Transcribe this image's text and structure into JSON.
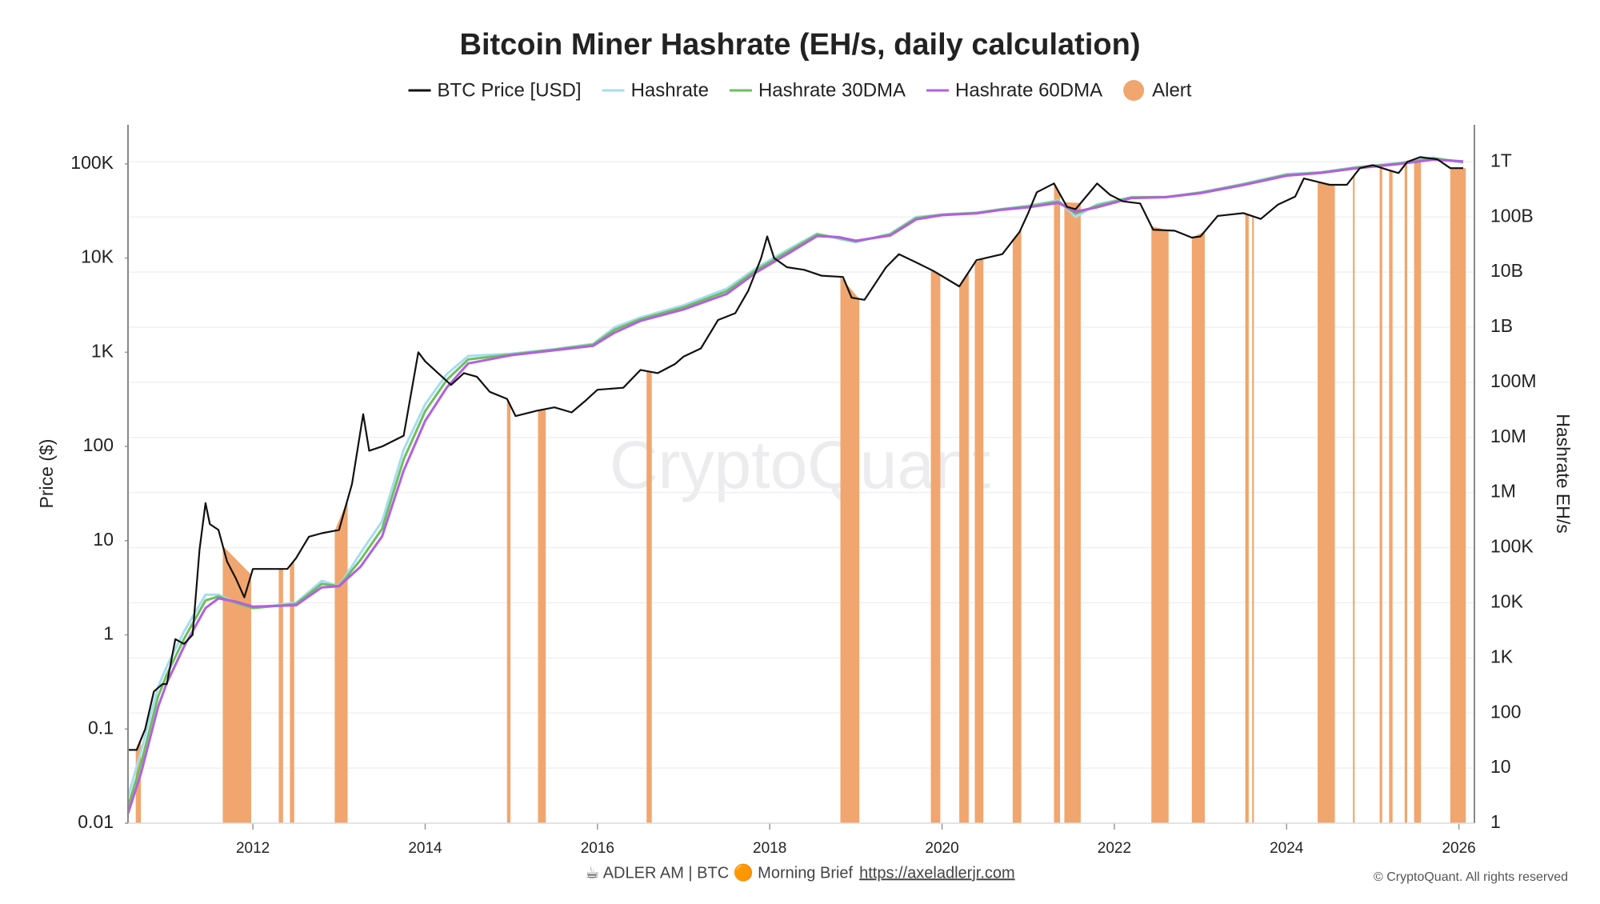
{
  "chart_data": {
    "type": "line",
    "title": "Bitcoin Miner Hashrate (EH/s, daily calculation)",
    "ylabel": "Price ($)",
    "y2label": "Hashrate EH/s",
    "watermark": "CryptoQuant",
    "footer": {
      "text": "☕ ADLER AM | BTC 🟠 Morning Brief",
      "link": "https://axeladlerjr.com"
    },
    "copyright": "© CryptoQuant. All rights reserved",
    "log_scale": true,
    "grid": true,
    "xlim": [
      2010.55,
      2026.18
    ],
    "xticks": [
      2012,
      2014,
      2016,
      2018,
      2020,
      2022,
      2024,
      2026
    ],
    "ylim": [
      0.01,
      260000
    ],
    "yticks": [
      0.01,
      0.1,
      1,
      10,
      100,
      {
        "value": 1000,
        "label": "1K"
      },
      {
        "value": 10000,
        "label": "10K"
      },
      {
        "value": 100000,
        "label": "100K"
      }
    ],
    "y2lim": [
      1,
      4700000000000
    ],
    "y2ticks": [
      1,
      10,
      100,
      {
        "value": 1000,
        "label": "1K"
      },
      {
        "value": 10000,
        "label": "10K"
      },
      {
        "value": 100000,
        "label": "100K"
      },
      {
        "value": 1000000,
        "label": "1M"
      },
      {
        "value": 10000000,
        "label": "10M"
      },
      {
        "value": 100000000,
        "label": "100M"
      },
      {
        "value": 1000000000,
        "label": "1B"
      },
      {
        "value": 10000000000,
        "label": "10B"
      },
      {
        "value": 100000000000,
        "label": "100B"
      },
      {
        "value": 1000000000000,
        "label": "1T"
      }
    ],
    "series": [
      {
        "name": "BTC Price [USD]",
        "color": "#111111",
        "axis": "y",
        "x": [
          2010.55,
          2010.65,
          2010.75,
          2010.85,
          2010.95,
          2011.0,
          2011.1,
          2011.2,
          2011.3,
          2011.38,
          2011.45,
          2011.5,
          2011.6,
          2011.7,
          2011.8,
          2011.9,
          2012.0,
          2012.2,
          2012.4,
          2012.5,
          2012.65,
          2012.8,
          2013.0,
          2013.15,
          2013.28,
          2013.35,
          2013.5,
          2013.75,
          2013.92,
          2014.0,
          2014.15,
          2014.3,
          2014.45,
          2014.6,
          2014.75,
          2014.95,
          2015.05,
          2015.3,
          2015.5,
          2015.7,
          2015.85,
          2016.0,
          2016.3,
          2016.5,
          2016.7,
          2016.9,
          2017.0,
          2017.2,
          2017.4,
          2017.6,
          2017.75,
          2017.9,
          2017.97,
          2018.05,
          2018.2,
          2018.4,
          2018.6,
          2018.85,
          2018.95,
          2019.1,
          2019.35,
          2019.5,
          2019.7,
          2019.9,
          2020.2,
          2020.4,
          2020.7,
          2020.9,
          2021.0,
          2021.1,
          2021.3,
          2021.45,
          2021.55,
          2021.8,
          2021.95,
          2022.1,
          2022.3,
          2022.45,
          2022.7,
          2022.9,
          2023.0,
          2023.2,
          2023.5,
          2023.7,
          2023.9,
          2024.1,
          2024.2,
          2024.5,
          2024.7,
          2024.85,
          2025.0,
          2025.2,
          2025.3,
          2025.4,
          2025.55,
          2025.75,
          2025.9,
          2026.05
        ],
        "values": [
          0.06,
          0.06,
          0.1,
          0.25,
          0.3,
          0.3,
          0.9,
          0.8,
          1,
          8,
          25,
          15,
          13,
          6,
          4,
          2.5,
          5,
          5,
          5,
          6.5,
          11,
          12,
          13,
          40,
          220,
          90,
          100,
          130,
          1000,
          800,
          600,
          450,
          600,
          550,
          380,
          320,
          210,
          240,
          260,
          230,
          300,
          400,
          420,
          650,
          600,
          750,
          900,
          1100,
          2200,
          2600,
          4500,
          10000,
          17000,
          10000,
          8000,
          7500,
          6500,
          6300,
          3800,
          3600,
          8000,
          11000,
          9000,
          7300,
          5000,
          9500,
          11000,
          19000,
          30000,
          50000,
          62000,
          35000,
          33000,
          62000,
          47000,
          40000,
          38000,
          20000,
          19500,
          16500,
          17000,
          28000,
          30000,
          26000,
          37000,
          45000,
          70000,
          60000,
          60000,
          90000,
          97000,
          85000,
          80000,
          105000,
          118000,
          112000,
          90000,
          90000
        ]
      },
      {
        "name": "Hashrate",
        "color": "#a6dcef",
        "axis": "y2",
        "x": [
          2010.55,
          2010.7,
          2010.9,
          2011.0,
          2011.2,
          2011.45,
          2011.6,
          2011.8,
          2012.0,
          2012.5,
          2012.8,
          2013.0,
          2013.25,
          2013.5,
          2013.75,
          2014.0,
          2014.25,
          2014.5,
          2015.0,
          2015.5,
          2015.95,
          2016.2,
          2016.5,
          2017.0,
          2017.5,
          2017.85,
          2018.2,
          2018.55,
          2018.8,
          2019.0,
          2019.4,
          2019.7,
          2020.0,
          2020.4,
          2020.7,
          2021.0,
          2021.35,
          2021.55,
          2021.8,
          2022.2,
          2022.6,
          2023.0,
          2023.5,
          2024.0,
          2024.4,
          2024.8,
          2025.3,
          2025.7,
          2026.05
        ],
        "values": [
          3,
          20,
          300,
          700,
          3000,
          14000,
          14000,
          10000,
          8000,
          10000,
          25000,
          20000,
          80000,
          300000,
          6000000,
          40000000,
          140000000,
          300000000,
          330000000,
          400000000,
          500000000,
          1000000000,
          1500000000,
          2500000000,
          5000000000,
          12000000000,
          25000000000,
          50000000000,
          40000000000,
          35000000000,
          50000000000,
          100000000000,
          110000000000,
          120000000000,
          140000000000,
          160000000000,
          200000000000,
          100000000000,
          170000000000,
          230000000000,
          230000000000,
          280000000000,
          400000000000,
          600000000000,
          650000000000,
          800000000000,
          950000000000,
          1200000000000,
          950000000000
        ]
      },
      {
        "name": "Hashrate 30DMA",
        "color": "#6cbf5a",
        "axis": "y2",
        "x": [
          2010.55,
          2010.7,
          2010.9,
          2011.0,
          2011.2,
          2011.45,
          2011.6,
          2011.8,
          2012.0,
          2012.5,
          2012.8,
          2013.0,
          2013.25,
          2013.5,
          2013.75,
          2014.0,
          2014.25,
          2014.5,
          2015.0,
          2015.5,
          2015.95,
          2016.2,
          2016.5,
          2017.0,
          2017.5,
          2017.85,
          2018.2,
          2018.55,
          2018.8,
          2019.0,
          2019.4,
          2019.7,
          2020.0,
          2020.4,
          2020.7,
          2021.0,
          2021.35,
          2021.55,
          2021.8,
          2022.2,
          2022.6,
          2023.0,
          2023.5,
          2024.0,
          2024.4,
          2024.8,
          2025.3,
          2025.7,
          2026.05
        ],
        "values": [
          2,
          12,
          200,
          500,
          2200,
          11000,
          13000,
          10000,
          8000,
          9500,
          22000,
          20000,
          60000,
          220000,
          4000000,
          30000000,
          110000000,
          260000000,
          320000000,
          390000000,
          480000000,
          900000000,
          1400000000,
          2300000000,
          4500000000,
          11000000000,
          23000000000,
          48000000000,
          42000000000,
          36000000000,
          48000000000,
          95000000000,
          110000000000,
          118000000000,
          138000000000,
          155000000000,
          190000000000,
          115000000000,
          160000000000,
          225000000000,
          230000000000,
          275000000000,
          390000000000,
          580000000000,
          640000000000,
          780000000000,
          930000000000,
          1150000000000,
          1000000000000
        ]
      },
      {
        "name": "Hashrate 60DMA",
        "color": "#b35fe0",
        "axis": "y2",
        "x": [
          2010.55,
          2010.7,
          2010.9,
          2011.0,
          2011.2,
          2011.45,
          2011.6,
          2011.8,
          2012.0,
          2012.5,
          2012.8,
          2013.0,
          2013.25,
          2013.5,
          2013.75,
          2014.0,
          2014.25,
          2014.5,
          2015.0,
          2015.5,
          2015.95,
          2016.2,
          2016.5,
          2017.0,
          2017.5,
          2017.85,
          2018.2,
          2018.55,
          2018.8,
          2019.0,
          2019.4,
          2019.7,
          2020.0,
          2020.4,
          2020.7,
          2021.0,
          2021.35,
          2021.55,
          2021.8,
          2022.2,
          2022.6,
          2023.0,
          2023.5,
          2024.0,
          2024.4,
          2024.8,
          2025.3,
          2025.7,
          2026.05
        ],
        "values": [
          1.5,
          8,
          130,
          350,
          1600,
          8000,
          12000,
          10500,
          8500,
          9000,
          19000,
          20000,
          45000,
          160000,
          2500000,
          20000000,
          80000000,
          220000000,
          310000000,
          380000000,
          460000000,
          800000000,
          1300000000,
          2100000000,
          4000000000,
          10000000000,
          21000000000,
          45000000000,
          43000000000,
          37000000000,
          46000000000,
          90000000000,
          108000000000,
          116000000000,
          135000000000,
          150000000000,
          180000000000,
          125000000000,
          150000000000,
          220000000000,
          228000000000,
          270000000000,
          380000000000,
          560000000000,
          630000000000,
          760000000000,
          910000000000,
          1100000000000,
          1020000000000
        ]
      }
    ],
    "alerts": {
      "name": "Alert",
      "color": "#f0a66e",
      "ranges": [
        [
          2010.64,
          2010.7
        ],
        [
          2011.65,
          2011.98
        ],
        [
          2012.3,
          2012.35
        ],
        [
          2012.43,
          2012.48
        ],
        [
          2012.95,
          2013.1
        ],
        [
          2014.95,
          2014.99
        ],
        [
          2015.31,
          2015.4
        ],
        [
          2016.57,
          2016.63
        ],
        [
          2018.82,
          2019.04
        ],
        [
          2019.87,
          2019.98
        ],
        [
          2020.2,
          2020.31
        ],
        [
          2020.38,
          2020.48
        ],
        [
          2020.82,
          2020.92
        ],
        [
          2021.3,
          2021.37
        ],
        [
          2021.42,
          2021.61
        ],
        [
          2022.43,
          2022.63
        ],
        [
          2022.9,
          2023.05
        ],
        [
          2023.52,
          2023.56
        ],
        [
          2023.6,
          2023.62
        ],
        [
          2024.36,
          2024.56
        ],
        [
          2024.77,
          2024.79
        ],
        [
          2025.08,
          2025.11
        ],
        [
          2025.19,
          2025.23
        ],
        [
          2025.37,
          2025.4
        ],
        [
          2025.48,
          2025.56
        ],
        [
          2025.9,
          2026.08
        ]
      ]
    }
  }
}
